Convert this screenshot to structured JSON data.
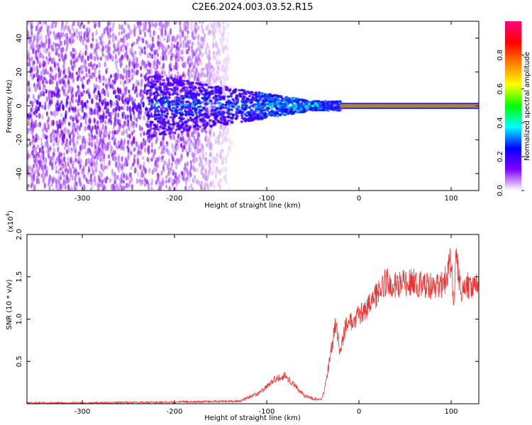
{
  "figure_title": "C2E6.2024.003.03.52.R15",
  "chart_data": [
    {
      "type": "heatmap",
      "title": "C2E6.2024.003.03.52.R15",
      "xlabel": "Height of straight line (km)",
      "ylabel": "Frequency (Hz)",
      "xlim": [
        -360,
        130
      ],
      "ylim": [
        -50,
        50
      ],
      "x_ticks": [
        -300,
        -200,
        -100,
        0,
        100
      ],
      "x_tick_labels": [
        "-300",
        "-200",
        "-100",
        "0",
        "100"
      ],
      "y_ticks": [
        -40,
        -20,
        0,
        20,
        40
      ],
      "y_tick_labels": [
        "-40",
        "-20",
        "0",
        "20",
        "40"
      ],
      "colorbar": {
        "label": "Normalized spectral amplitude",
        "range": [
          0,
          1
        ],
        "ticks": [
          0.0,
          0.2,
          0.4,
          0.6,
          0.8
        ],
        "tick_labels": [
          "0.0",
          "0.2",
          "0.4",
          "0.6",
          "0.8"
        ],
        "colormap": [
          "#ffffff",
          "#8000ff",
          "#0000ff",
          "#00ffff",
          "#00ff00",
          "#ffff00",
          "#ff8000",
          "#ff0000",
          "#ff0080"
        ]
      },
      "features": {
        "noise_region_x": [
          -360,
          -130
        ],
        "signal_onset_x": -130,
        "carrier_frequency_hz": 0,
        "carrier_from_x": -20
      },
      "grid": false
    },
    {
      "type": "line",
      "xlabel": "Height of straight line (km)",
      "ylabel": "SNR (10 * v/v)",
      "y_scale_label": "(x10",
      "y_scale_exponent": "4",
      "xlim": [
        -360,
        130
      ],
      "ylim": [
        0,
        2.0
      ],
      "x_ticks": [
        -300,
        -200,
        -100,
        0,
        100
      ],
      "x_tick_labels": [
        "-300",
        "-200",
        "-100",
        "0",
        "100"
      ],
      "y_ticks": [
        0.5,
        1.0,
        1.5,
        2.0
      ],
      "y_tick_labels": [
        "0.5",
        "1.0",
        "1.5",
        "2.0"
      ],
      "series_color": "#ef3232",
      "x": [
        -360,
        -300,
        -200,
        -130,
        -110,
        -100,
        -90,
        -80,
        -70,
        -60,
        -50,
        -40,
        -35,
        -30,
        -25,
        -20,
        -15,
        -10,
        0,
        10,
        20,
        30,
        40,
        50,
        60,
        70,
        80,
        90,
        95,
        100,
        103,
        105,
        110,
        120,
        130
      ],
      "y": [
        0.01,
        0.01,
        0.02,
        0.03,
        0.12,
        0.2,
        0.3,
        0.33,
        0.22,
        0.1,
        0.06,
        0.05,
        0.3,
        0.65,
        0.95,
        0.6,
        0.9,
        0.95,
        1.05,
        1.15,
        1.3,
        1.45,
        1.4,
        1.42,
        1.43,
        1.4,
        1.38,
        1.4,
        1.5,
        1.7,
        1.15,
        1.85,
        1.35,
        1.4,
        1.42
      ]
    }
  ]
}
